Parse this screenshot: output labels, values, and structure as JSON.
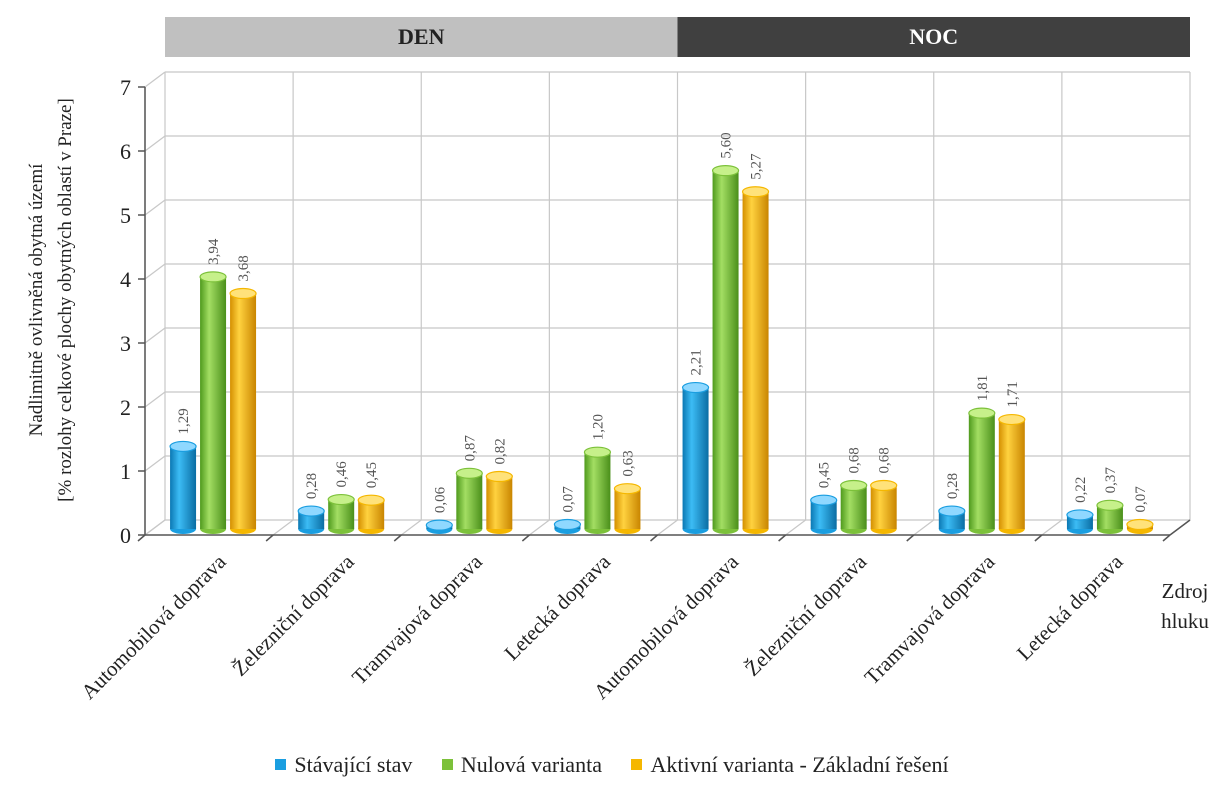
{
  "chart_data": {
    "type": "bar",
    "groups": [
      {
        "label": "DEN",
        "color": "#c0c0c0",
        "text_color": "#222222"
      },
      {
        "label": "NOC",
        "color": "#404040",
        "text_color": "#ffffff"
      }
    ],
    "categories": [
      "Automobilová doprava",
      "Železniční doprava",
      "Tramvajová doprava",
      "Letecká doprava",
      "Automobilová doprava",
      "Železniční doprava",
      "Tramvajová doprava",
      "Letecká doprava"
    ],
    "series": [
      {
        "name": "Stávající stav",
        "color": "#1a9ee0",
        "values": [
          1.29,
          0.28,
          0.06,
          0.07,
          2.21,
          0.45,
          0.28,
          0.22
        ],
        "labels": [
          "1,29",
          "0,28",
          "0,06",
          "0,07",
          "2,21",
          "0,45",
          "0,28",
          "0,22"
        ]
      },
      {
        "name": "Nulová varianta",
        "color": "#7cc13a",
        "values": [
          3.94,
          0.46,
          0.87,
          1.2,
          5.6,
          0.68,
          1.81,
          0.37
        ],
        "labels": [
          "3,94",
          "0,46",
          "0,87",
          "1,20",
          "5,60",
          "0,68",
          "1,81",
          "0,37"
        ]
      },
      {
        "name": "Aktivní varianta - Základní řešení",
        "color": "#f5b700",
        "values": [
          3.68,
          0.45,
          0.82,
          0.63,
          5.27,
          0.68,
          1.71,
          0.07
        ],
        "labels": [
          "3,68",
          "0,45",
          "0,82",
          "0,63",
          "5,27",
          "0,68",
          "1,71",
          "0,07"
        ]
      }
    ],
    "ylabel": [
      "Nadlimitně ovlivněná obytná území",
      "[% rozlohy celkové plochy obytných  oblastí v Praze]"
    ],
    "xlabel": [
      "Zdroj",
      "hluku"
    ],
    "yticks": [
      "0",
      "1",
      "2",
      "3",
      "4",
      "5",
      "6",
      "7"
    ],
    "ylim": [
      0,
      7
    ],
    "grid": true,
    "legend_position": "bottom"
  }
}
